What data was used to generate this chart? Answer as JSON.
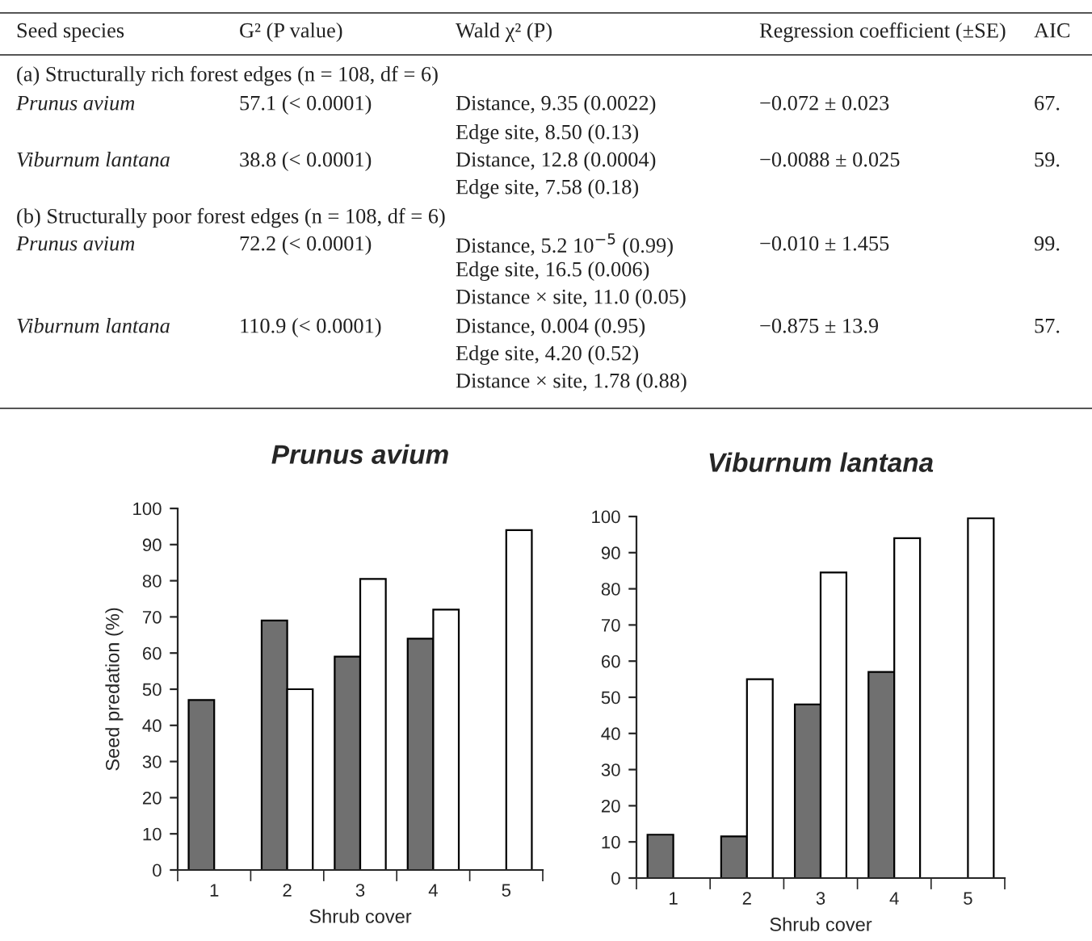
{
  "chart_data": [
    {
      "type": "other",
      "annotations": [
        "Seed species",
        "G² (P value)",
        "Wald χ² (P)",
        "Regression coefficient (±SE)",
        "AIC",
        "(a) Structurally rich forest edges (n = 108, df = 6)",
        "Prunus avium",
        "57.1 (< 0.0001)",
        "Distance, 9.35 (0.0022)",
        "−0.072 ± 0.023",
        "67.",
        "Edge site, 8.50 (0.13)",
        "Viburnum lantana",
        "38.8 (< 0.0001)",
        "Distance, 12.8 (0.0004)",
        "−0.0088 ± 0.025",
        "59.",
        "Edge site, 7.58 (0.18)",
        "(b) Structurally poor forest edges (n = 108, df = 6)",
        "Prunus avium",
        "72.2 (< 0.0001)",
        "Distance, 5.2 10$^{−5}$ (0.99)",
        "−0.010 ± 1.455",
        "99.",
        "Edge site, 16.5 (0.006)",
        "Distance × site, 11.0 (0.05)",
        "Viburnum lantana",
        "110.9 (< 0.0001)",
        "Distance, 0.004 (0.95)",
        "−0.875 ± 13.9",
        "57.",
        "Edge site, 4.20 (0.52)",
        "Distance × site, 1.78 (0.88)"
      ]
    },
    {
      "type": "bar",
      "title": "Prunus avium",
      "xlabel": "Shrub cover",
      "ylabel": "Seed predation (%)",
      "categories": [
        "1",
        "2",
        "3",
        "4",
        "5"
      ],
      "series": [
        {
          "color": "#707070",
          "values": [
            47,
            69,
            59,
            64,
            null
          ]
        },
        {
          "color": "#ffffff",
          "values": [
            null,
            50,
            80.5,
            72,
            94
          ]
        }
      ],
      "ylim": [
        0,
        100
      ],
      "yticks": [
        0,
        10,
        20,
        30,
        40,
        50,
        60,
        70,
        80,
        90,
        100
      ],
      "grid": false
    },
    {
      "type": "bar",
      "title": "Viburnum lantana",
      "xlabel": "Shrub cover",
      "categories": [
        "1",
        "2",
        "3",
        "4",
        "5"
      ],
      "series": [
        {
          "color": "#707070",
          "values": [
            12,
            11.5,
            48,
            57,
            null
          ]
        },
        {
          "color": "#ffffff",
          "values": [
            null,
            55,
            84.5,
            94,
            99.5
          ]
        }
      ],
      "ylim": [
        0,
        100
      ],
      "yticks": [
        0,
        10,
        20,
        30,
        40,
        50,
        60,
        70,
        80,
        90,
        100
      ],
      "grid": false
    }
  ]
}
